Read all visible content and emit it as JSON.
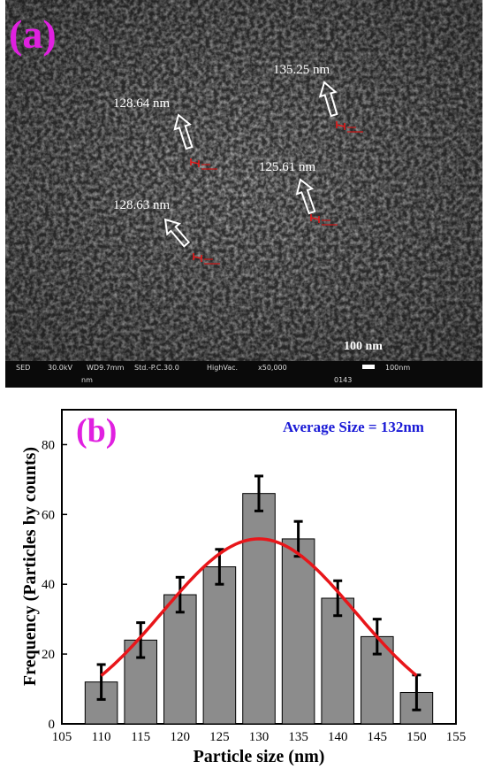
{
  "panel_a": {
    "label": "(a)",
    "annotations": [
      "128.64 nm",
      "135.25 nm",
      "125.61 nm",
      "128.63 nm"
    ],
    "scale_bar_label": "100 nm",
    "info_bar": {
      "detector": "SED",
      "voltage": "30.0kV",
      "wd": "WD9.7mm",
      "spot": "Std.-P.C.30.0",
      "vacuum": "HighVac.",
      "magnification": "x50,000",
      "scale_value": "100nm",
      "unit": "nm",
      "image_number": "0143"
    }
  },
  "chart_data": {
    "type": "bar",
    "panel_label": "(b)",
    "annotation": "Average Size = 132nm",
    "categories": [
      110,
      115,
      120,
      125,
      130,
      135,
      140,
      145,
      150
    ],
    "values": [
      12,
      24,
      37,
      45,
      66,
      53,
      36,
      25,
      9
    ],
    "errors": [
      5,
      5,
      5,
      5,
      5,
      5,
      5,
      5,
      5
    ],
    "fit_curve": {
      "type": "gaussian",
      "peak_x": 130,
      "peak_y": 53,
      "x_range": [
        110,
        150
      ],
      "color": "#e8161a"
    },
    "xlabel": "Particle size (nm)",
    "ylabel": "Frequency (Particles by counts)",
    "xlim": [
      105,
      155
    ],
    "ylim": [
      0,
      90
    ],
    "xticks": [
      105,
      110,
      115,
      120,
      125,
      130,
      135,
      140,
      145,
      150,
      155
    ],
    "yticks": [
      0,
      20,
      40,
      60,
      80
    ],
    "bar_color": "#8c8c8c",
    "annotation_color": "#1a1ad6",
    "panel_label_color": "#e020e0"
  }
}
